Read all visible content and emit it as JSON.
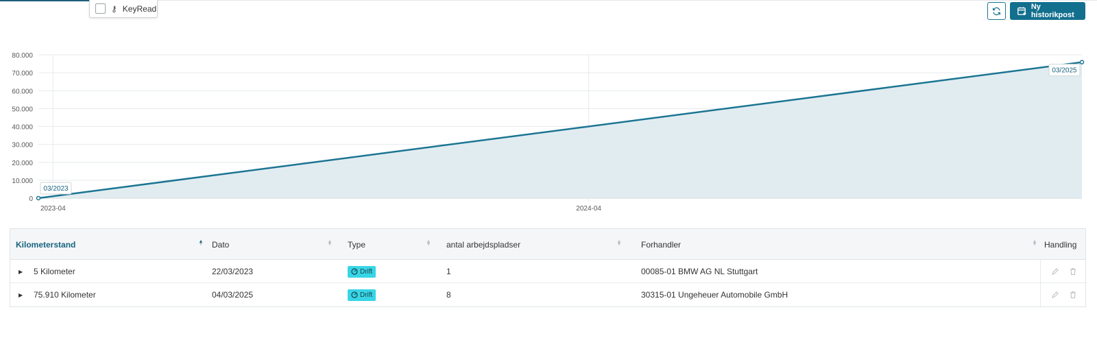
{
  "keyread": {
    "label": "KeyRead",
    "key_glyph": "⚷"
  },
  "toolbar": {
    "new_history_label": "Ny historikpost",
    "refresh_icon": "refresh-icon",
    "calendar_icon": "calendar-plus-icon"
  },
  "colors": {
    "primary": "#136f8e",
    "line": "#1b7592",
    "area": "#deeaef",
    "badge": "#37d6e6"
  },
  "chart_data": {
    "type": "area",
    "title": "",
    "xlabel": "",
    "ylabel": "",
    "ylim": [
      0,
      80000
    ],
    "y_ticks": [
      "80.000",
      "70.000",
      "60.000",
      "50.000",
      "40.000",
      "30.000",
      "20.000",
      "10.000",
      "0"
    ],
    "x_ticks": [
      "2023-04",
      "2024-04"
    ],
    "grid": true,
    "points": [
      {
        "date": "2023-03-22",
        "value": 5,
        "label": "03/2023"
      },
      {
        "date": "2025-03-04",
        "value": 75910,
        "label": "03/2025"
      }
    ]
  },
  "table": {
    "columns": [
      {
        "label": "Kilometerstand",
        "sorted": "asc"
      },
      {
        "label": "Dato"
      },
      {
        "label": "Type"
      },
      {
        "label": "antal arbejdspladser"
      },
      {
        "label": "Forhandler"
      },
      {
        "label": "Handling"
      }
    ],
    "rows": [
      {
        "kilometer": "5 Kilometer",
        "date": "22/03/2023",
        "type": "Drift",
        "workplaces": "1",
        "dealer": "00085-01 BMW AG NL Stuttgart"
      },
      {
        "kilometer": "75.910 Kilometer",
        "date": "04/03/2025",
        "type": "Drift",
        "workplaces": "8",
        "dealer": "30315-01 Ungeheuer Automobile GmbH"
      }
    ]
  }
}
